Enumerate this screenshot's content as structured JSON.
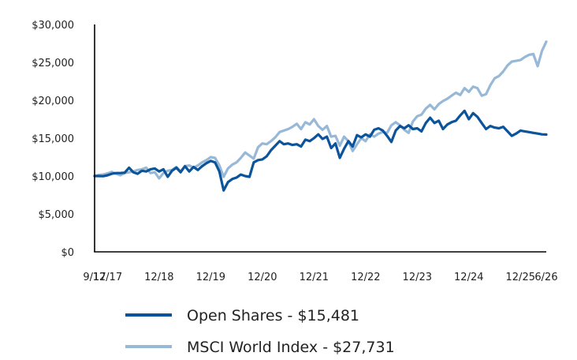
{
  "chart_data": {
    "type": "line",
    "title": "",
    "xlabel": "",
    "ylabel": "",
    "ylim": [
      0,
      30000
    ],
    "y_ticks": [
      {
        "value": 0,
        "label": "$0"
      },
      {
        "value": 5000,
        "label": "$5,000"
      },
      {
        "value": 10000,
        "label": "$10,000"
      },
      {
        "value": 15000,
        "label": "$15,000"
      },
      {
        "value": 20000,
        "label": "$20,000"
      },
      {
        "value": 25000,
        "label": "$25,000"
      },
      {
        "value": 30000,
        "label": "$30,000"
      }
    ],
    "x_range": [
      "2017-09",
      "2026-06"
    ],
    "x_ticks": [
      {
        "date": "2017-09",
        "label": "9/17"
      },
      {
        "date": "2017-12",
        "label": "12/17"
      },
      {
        "date": "2018-12",
        "label": "12/18"
      },
      {
        "date": "2019-12",
        "label": "12/19"
      },
      {
        "date": "2020-12",
        "label": "12/20"
      },
      {
        "date": "2021-12",
        "label": "12/21"
      },
      {
        "date": "2022-12",
        "label": "12/22"
      },
      {
        "date": "2023-12",
        "label": "12/23"
      },
      {
        "date": "2024-12",
        "label": "12/24"
      },
      {
        "date": "2025-12",
        "label": "12/25"
      },
      {
        "date": "2026-06",
        "label": "6/26"
      }
    ],
    "grid": false,
    "legend_position": "bottom-left",
    "series": [
      {
        "name": "Open Shares - $15,481",
        "color": "#0b539b",
        "points": [
          [
            "2017-09",
            10000
          ],
          [
            "2017-10",
            10000
          ],
          [
            "2017-11",
            9980
          ],
          [
            "2017-12",
            10100
          ],
          [
            "2018-01",
            10300
          ],
          [
            "2018-02",
            10400
          ],
          [
            "2018-03",
            10400
          ],
          [
            "2018-04",
            10450
          ],
          [
            "2018-05",
            11100
          ],
          [
            "2018-06",
            10500
          ],
          [
            "2018-07",
            10300
          ],
          [
            "2018-08",
            10700
          ],
          [
            "2018-09",
            10600
          ],
          [
            "2018-10",
            10900
          ],
          [
            "2018-11",
            11000
          ],
          [
            "2018-12",
            10600
          ],
          [
            "2019-01",
            10900
          ],
          [
            "2019-02",
            9900
          ],
          [
            "2019-03",
            10700
          ],
          [
            "2019-04",
            11100
          ],
          [
            "2019-05",
            10500
          ],
          [
            "2019-06",
            11300
          ],
          [
            "2019-07",
            10600
          ],
          [
            "2019-08",
            11200
          ],
          [
            "2019-09",
            10800
          ],
          [
            "2019-10",
            11300
          ],
          [
            "2019-11",
            11700
          ],
          [
            "2019-12",
            12000
          ],
          [
            "2020-01",
            11800
          ],
          [
            "2020-02",
            10600
          ],
          [
            "2020-03",
            8100
          ],
          [
            "2020-04",
            9200
          ],
          [
            "2020-05",
            9600
          ],
          [
            "2020-06",
            9800
          ],
          [
            "2020-07",
            10200
          ],
          [
            "2020-08",
            10000
          ],
          [
            "2020-09",
            9900
          ],
          [
            "2020-10",
            11800
          ],
          [
            "2020-11",
            12100
          ],
          [
            "2020-12",
            12200
          ],
          [
            "2021-01",
            12600
          ],
          [
            "2021-02",
            13400
          ],
          [
            "2021-03",
            14000
          ],
          [
            "2021-04",
            14600
          ],
          [
            "2021-05",
            14200
          ],
          [
            "2021-06",
            14300
          ],
          [
            "2021-07",
            14100
          ],
          [
            "2021-08",
            14200
          ],
          [
            "2021-09",
            13900
          ],
          [
            "2021-10",
            14800
          ],
          [
            "2021-11",
            14600
          ],
          [
            "2021-12",
            15000
          ],
          [
            "2022-01",
            15500
          ],
          [
            "2022-02",
            14900
          ],
          [
            "2022-03",
            15200
          ],
          [
            "2022-04",
            13700
          ],
          [
            "2022-05",
            14300
          ],
          [
            "2022-06",
            12400
          ],
          [
            "2022-07",
            13600
          ],
          [
            "2022-08",
            14600
          ],
          [
            "2022-09",
            13900
          ],
          [
            "2022-10",
            15400
          ],
          [
            "2022-11",
            15100
          ],
          [
            "2022-12",
            15500
          ],
          [
            "2023-01",
            15200
          ],
          [
            "2023-02",
            16100
          ],
          [
            "2023-03",
            16300
          ],
          [
            "2023-04",
            16000
          ],
          [
            "2023-05",
            15300
          ],
          [
            "2023-06",
            14500
          ],
          [
            "2023-07",
            16000
          ],
          [
            "2023-08",
            16600
          ],
          [
            "2023-09",
            16300
          ],
          [
            "2023-10",
            16700
          ],
          [
            "2023-11",
            16200
          ],
          [
            "2023-12",
            16300
          ],
          [
            "2024-01",
            15900
          ],
          [
            "2024-02",
            17000
          ],
          [
            "2024-03",
            17700
          ],
          [
            "2024-04",
            17000
          ],
          [
            "2024-05",
            17300
          ],
          [
            "2024-06",
            16200
          ],
          [
            "2024-07",
            16800
          ],
          [
            "2024-08",
            17100
          ],
          [
            "2024-09",
            17300
          ],
          [
            "2024-10",
            18000
          ],
          [
            "2024-11",
            18600
          ],
          [
            "2024-12",
            17500
          ],
          [
            "2025-01",
            18300
          ],
          [
            "2025-02",
            17800
          ],
          [
            "2025-03",
            17000
          ],
          [
            "2025-04",
            16200
          ],
          [
            "2025-05",
            16600
          ],
          [
            "2025-06",
            16400
          ],
          [
            "2025-07",
            16300
          ],
          [
            "2025-08",
            16500
          ],
          [
            "2025-09",
            15900
          ],
          [
            "2025-10",
            15300
          ],
          [
            "2025-11",
            15600
          ],
          [
            "2025-12",
            16000
          ],
          [
            "2026-01",
            15900
          ],
          [
            "2026-02",
            15800
          ],
          [
            "2026-03",
            15700
          ],
          [
            "2026-04",
            15600
          ],
          [
            "2026-05",
            15500
          ],
          [
            "2026-06",
            15481
          ]
        ]
      },
      {
        "name": "MSCI World Index - $27,731",
        "color": "#97b8d6",
        "points": [
          [
            "2017-09",
            10000
          ],
          [
            "2017-10",
            10150
          ],
          [
            "2017-11",
            10200
          ],
          [
            "2017-12",
            10350
          ],
          [
            "2018-01",
            10550
          ],
          [
            "2018-02",
            10300
          ],
          [
            "2018-03",
            10100
          ],
          [
            "2018-04",
            10400
          ],
          [
            "2018-05",
            10500
          ],
          [
            "2018-06",
            10600
          ],
          [
            "2018-07",
            10800
          ],
          [
            "2018-08",
            10900
          ],
          [
            "2018-09",
            11100
          ],
          [
            "2018-10",
            10400
          ],
          [
            "2018-11",
            10500
          ],
          [
            "2018-12",
            9700
          ],
          [
            "2019-01",
            10400
          ],
          [
            "2019-02",
            10700
          ],
          [
            "2019-03",
            10800
          ],
          [
            "2019-04",
            11200
          ],
          [
            "2019-05",
            10600
          ],
          [
            "2019-06",
            11300
          ],
          [
            "2019-07",
            11400
          ],
          [
            "2019-08",
            11100
          ],
          [
            "2019-09",
            11400
          ],
          [
            "2019-10",
            11800
          ],
          [
            "2019-11",
            12100
          ],
          [
            "2019-12",
            12500
          ],
          [
            "2020-01",
            12400
          ],
          [
            "2020-02",
            11400
          ],
          [
            "2020-03",
            9900
          ],
          [
            "2020-04",
            11000
          ],
          [
            "2020-05",
            11500
          ],
          [
            "2020-06",
            11800
          ],
          [
            "2020-07",
            12400
          ],
          [
            "2020-08",
            13100
          ],
          [
            "2020-09",
            12700
          ],
          [
            "2020-10",
            12300
          ],
          [
            "2020-11",
            13800
          ],
          [
            "2020-12",
            14300
          ],
          [
            "2021-01",
            14200
          ],
          [
            "2021-02",
            14600
          ],
          [
            "2021-03",
            15100
          ],
          [
            "2021-04",
            15800
          ],
          [
            "2021-05",
            16000
          ],
          [
            "2021-06",
            16200
          ],
          [
            "2021-07",
            16500
          ],
          [
            "2021-08",
            16900
          ],
          [
            "2021-09",
            16200
          ],
          [
            "2021-10",
            17100
          ],
          [
            "2021-11",
            16800
          ],
          [
            "2021-12",
            17500
          ],
          [
            "2022-01",
            16600
          ],
          [
            "2022-02",
            16100
          ],
          [
            "2022-03",
            16600
          ],
          [
            "2022-04",
            15200
          ],
          [
            "2022-05",
            15300
          ],
          [
            "2022-06",
            14000
          ],
          [
            "2022-07",
            15200
          ],
          [
            "2022-08",
            14600
          ],
          [
            "2022-09",
            13300
          ],
          [
            "2022-10",
            14200
          ],
          [
            "2022-11",
            15000
          ],
          [
            "2022-12",
            14600
          ],
          [
            "2023-01",
            15500
          ],
          [
            "2023-02",
            15200
          ],
          [
            "2023-03",
            15600
          ],
          [
            "2023-04",
            15800
          ],
          [
            "2023-05",
            15700
          ],
          [
            "2023-06",
            16700
          ],
          [
            "2023-07",
            17100
          ],
          [
            "2023-08",
            16700
          ],
          [
            "2023-09",
            16100
          ],
          [
            "2023-10",
            15700
          ],
          [
            "2023-11",
            17200
          ],
          [
            "2023-12",
            17900
          ],
          [
            "2024-01",
            18100
          ],
          [
            "2024-02",
            18900
          ],
          [
            "2024-03",
            19400
          ],
          [
            "2024-04",
            18800
          ],
          [
            "2024-05",
            19500
          ],
          [
            "2024-06",
            19900
          ],
          [
            "2024-07",
            20200
          ],
          [
            "2024-08",
            20600
          ],
          [
            "2024-09",
            21000
          ],
          [
            "2024-10",
            20700
          ],
          [
            "2024-11",
            21600
          ],
          [
            "2024-12",
            21100
          ],
          [
            "2025-01",
            21800
          ],
          [
            "2025-02",
            21600
          ],
          [
            "2025-03",
            20600
          ],
          [
            "2025-04",
            20800
          ],
          [
            "2025-05",
            22000
          ],
          [
            "2025-06",
            22900
          ],
          [
            "2025-07",
            23200
          ],
          [
            "2025-08",
            23800
          ],
          [
            "2025-09",
            24600
          ],
          [
            "2025-10",
            25100
          ],
          [
            "2025-11",
            25200
          ],
          [
            "2025-12",
            25300
          ],
          [
            "2026-01",
            25700
          ],
          [
            "2026-02",
            26000
          ],
          [
            "2026-03",
            26100
          ],
          [
            "2026-04",
            24500
          ],
          [
            "2026-05",
            26500
          ],
          [
            "2026-06",
            27731
          ]
        ]
      }
    ]
  }
}
